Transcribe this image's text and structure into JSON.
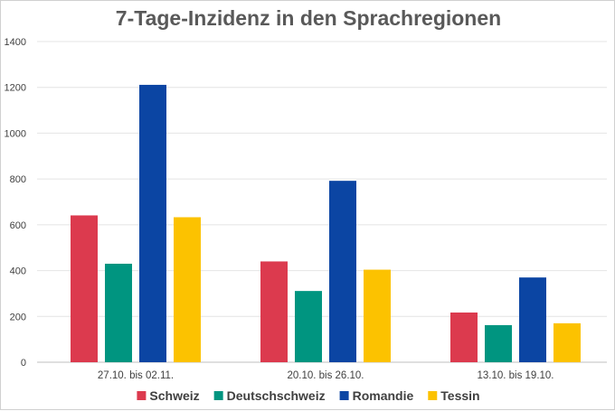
{
  "chart_data": {
    "type": "bar",
    "title": "7-Tage-Inzidenz in den Sprachregionen",
    "categories": [
      "27.10. bis 02.11.",
      "20.10. bis 26.10.",
      "13.10. bis 19.10."
    ],
    "series": [
      {
        "name": "Schweiz",
        "color": "#dc3a4e",
        "values": [
          641,
          440,
          217
        ]
      },
      {
        "name": "Deutschschweiz",
        "color": "#009580",
        "values": [
          430,
          311,
          162
        ]
      },
      {
        "name": "Romandie",
        "color": "#0b45a3",
        "values": [
          1211,
          792,
          370
        ]
      },
      {
        "name": "Tessin",
        "color": "#fcc200",
        "values": [
          633,
          404,
          170
        ]
      }
    ],
    "ylim": [
      0,
      1400
    ],
    "yticks": [
      0,
      200,
      400,
      600,
      800,
      1000,
      1200,
      1400
    ],
    "ytick_labels": [
      "0",
      "200",
      "400",
      "600",
      "800",
      "1000",
      "1200",
      "1400"
    ],
    "xlabel": "",
    "ylabel": "",
    "grid": true,
    "legend_position": "bottom"
  }
}
